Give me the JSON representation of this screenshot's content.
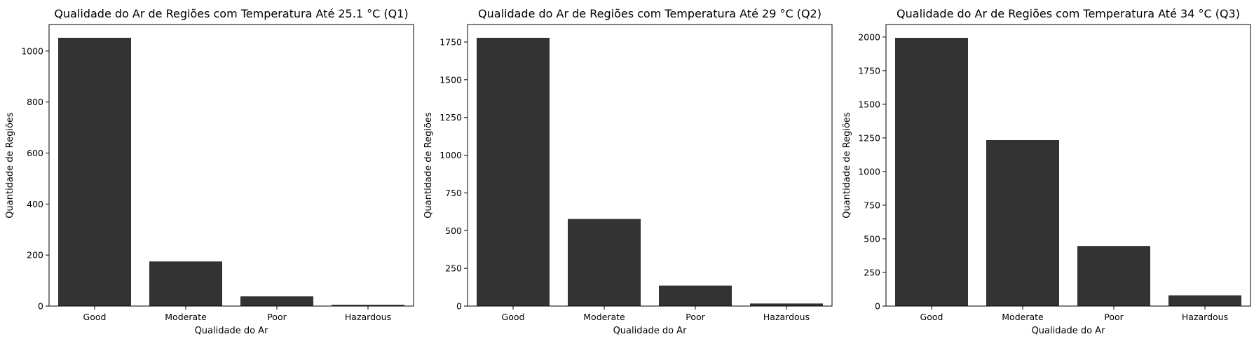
{
  "chart_data": [
    {
      "type": "bar",
      "title": "Qualidade do Ar de Regiões com Temperatura Até 25.1 °C (Q1)",
      "xlabel": "Qualidade do Ar",
      "ylabel": "Quantidade de Regiões",
      "categories": [
        "Good",
        "Moderate",
        "Poor",
        "Hazardous"
      ],
      "values": [
        1052,
        175,
        38,
        5
      ],
      "ylim": [
        0,
        1104
      ],
      "yticks": [
        0,
        200,
        400,
        600,
        800,
        1000
      ],
      "ytick_labels": [
        "0",
        "200",
        "400",
        "600",
        "800",
        "1000"
      ],
      "bar_color": "#333333",
      "grid": false,
      "legend": "none"
    },
    {
      "type": "bar",
      "title": "Qualidade do Ar de Regiões com Temperatura Até 29 °C (Q2)",
      "xlabel": "Qualidade do Ar",
      "ylabel": "Quantidade de Regiões",
      "categories": [
        "Good",
        "Moderate",
        "Poor",
        "Hazardous"
      ],
      "values": [
        1778,
        577,
        136,
        17
      ],
      "ylim": [
        0,
        1866
      ],
      "yticks": [
        0,
        250,
        500,
        750,
        1000,
        1250,
        1500,
        1750
      ],
      "ytick_labels": [
        "0",
        "250",
        "500",
        "750",
        "1000",
        "1250",
        "1500",
        "1750"
      ],
      "bar_color": "#333333",
      "grid": false,
      "legend": "none"
    },
    {
      "type": "bar",
      "title": "Qualidade do Ar de Regiões com Temperatura Até 34 °C (Q3)",
      "xlabel": "Qualidade do Ar",
      "ylabel": "Quantidade de Regiões",
      "categories": [
        "Good",
        "Moderate",
        "Poor",
        "Hazardous"
      ],
      "values": [
        1994,
        1234,
        447,
        80
      ],
      "ylim": [
        0,
        2093
      ],
      "yticks": [
        0,
        250,
        500,
        750,
        1000,
        1250,
        1500,
        1750,
        2000
      ],
      "ytick_labels": [
        "0",
        "250",
        "500",
        "750",
        "1000",
        "1250",
        "1500",
        "1750",
        "2000"
      ],
      "bar_color": "#333333",
      "grid": false,
      "legend": "none"
    }
  ]
}
